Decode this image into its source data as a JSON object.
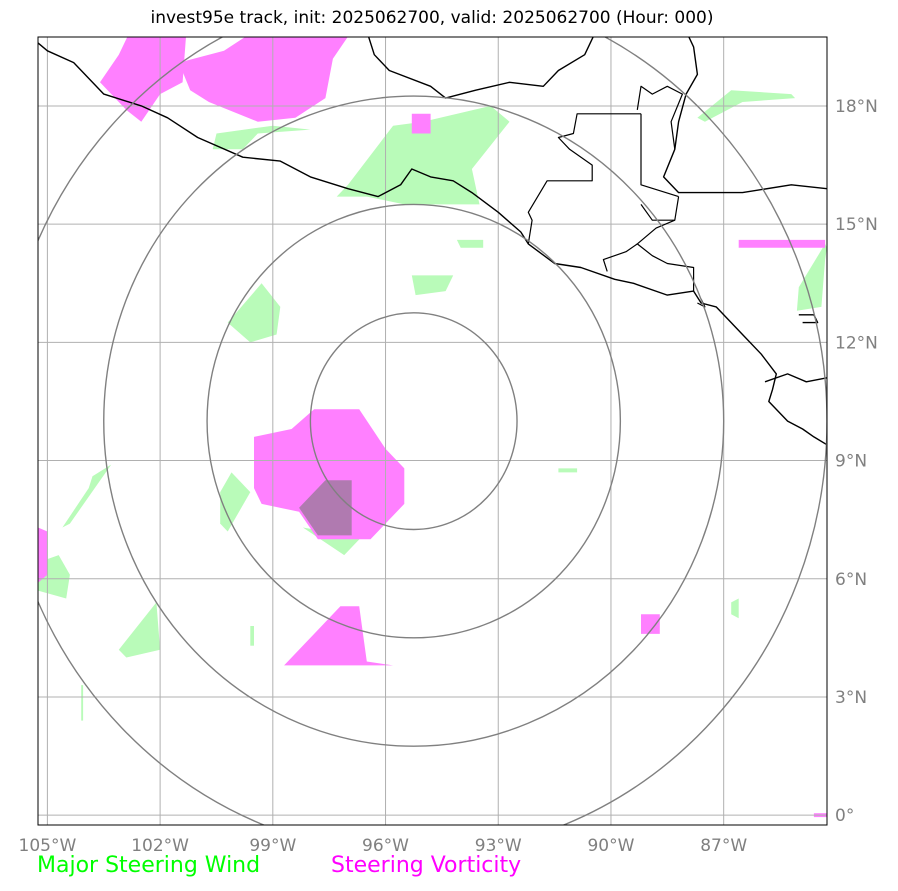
{
  "title": "invest95e track, init: 2025062700, valid: 2025062700 (Hour: 000)",
  "map": {
    "lon_range": [
      -105.25,
      -84.25
    ],
    "lat_range": [
      -0.25,
      19.75
    ],
    "lon_ticks": [
      {
        "value": -105,
        "label": "105°W"
      },
      {
        "value": -102,
        "label": "102°W"
      },
      {
        "value": -99,
        "label": "99°W"
      },
      {
        "value": -96,
        "label": "96°W"
      },
      {
        "value": -93,
        "label": "93°W"
      },
      {
        "value": -90,
        "label": "90°W"
      },
      {
        "value": -87,
        "label": "87°W"
      }
    ],
    "lat_ticks": [
      {
        "value": 18,
        "label": "18°N"
      },
      {
        "value": 15,
        "label": "15°N"
      },
      {
        "value": 12,
        "label": "12°N"
      },
      {
        "value": 9,
        "label": "9°N"
      },
      {
        "value": 6,
        "label": "6°N"
      },
      {
        "value": 3,
        "label": "3°N"
      },
      {
        "value": 0,
        "label": "0°"
      }
    ],
    "range_ring_center": {
      "lon": -95.25,
      "lat": 10.0
    },
    "range_ring_radii_deg": [
      2.75,
      5.5,
      8.25,
      11.0
    ],
    "gridlines": true
  },
  "legend": {
    "wind_label": "Major Steering Wind",
    "wind_color": "#00ff00",
    "vorticity_label": "Steering Vorticity",
    "vorticity_color": "#ff00ff"
  },
  "colors": {
    "wind_fill": "#b9fbb9",
    "vorticity_fill": "#ff80ff",
    "overlap_fill": "#b07ab0",
    "ring": "#808080",
    "grid": "#b0b0b0",
    "coast": "#000000"
  },
  "fields": {
    "wind": [
      [
        [
          -97,
          16
        ],
        [
          -95.8,
          17.5
        ],
        [
          -95,
          17.6
        ],
        [
          -93.2,
          18
        ],
        [
          -92.7,
          17.6
        ],
        [
          -93.7,
          16.4
        ],
        [
          -93.5,
          15.5
        ],
        [
          -95.5,
          15.5
        ],
        [
          -96.5,
          15.7
        ],
        [
          -97.3,
          15.7
        ]
      ],
      [
        [
          -100.6,
          16.9
        ],
        [
          -100.5,
          17.3
        ],
        [
          -99,
          17.5
        ],
        [
          -98,
          17.4
        ],
        [
          -99.4,
          17.3
        ],
        [
          -99.8,
          16.9
        ]
      ],
      [
        [
          -87.7,
          17.7
        ],
        [
          -86.8,
          18.4
        ],
        [
          -85.2,
          18.3
        ],
        [
          -85.1,
          18.2
        ],
        [
          -86.5,
          18.1
        ],
        [
          -87.5,
          17.6
        ]
      ],
      [
        [
          -84.3,
          14.1
        ],
        [
          -84.25,
          14.4
        ],
        [
          -84.3,
          14.5
        ],
        [
          -85,
          13.4
        ],
        [
          -85.05,
          12.8
        ],
        [
          -84.4,
          12.9
        ]
      ],
      [
        [
          -100.2,
          12.5
        ],
        [
          -99.3,
          13.5
        ],
        [
          -98.8,
          12.9
        ],
        [
          -98.9,
          12.2
        ],
        [
          -99.6,
          12.0
        ]
      ],
      [
        [
          -95.3,
          13.7
        ],
        [
          -94.2,
          13.7
        ],
        [
          -94.4,
          13.3
        ],
        [
          -95.2,
          13.2
        ]
      ],
      [
        [
          -94.1,
          14.6
        ],
        [
          -93.4,
          14.6
        ],
        [
          -93.4,
          14.4
        ],
        [
          -94.0,
          14.4
        ]
      ],
      [
        [
          -98.2,
          7.3
        ],
        [
          -97.6,
          7.2
        ],
        [
          -96.9,
          8.3
        ],
        [
          -96.4,
          8.8
        ],
        [
          -95.8,
          7.8
        ],
        [
          -96.5,
          7.2
        ],
        [
          -97.1,
          6.6
        ]
      ],
      [
        [
          -104.6,
          7.3
        ],
        [
          -103.9,
          8.3
        ],
        [
          -103.8,
          8.6
        ],
        [
          -103.3,
          8.9
        ],
        [
          -104.4,
          7.4
        ]
      ],
      [
        [
          -105.3,
          6.4
        ],
        [
          -105.25,
          5.7
        ],
        [
          -104.5,
          5.5
        ],
        [
          -104.4,
          6.1
        ],
        [
          -104.7,
          6.6
        ]
      ],
      [
        [
          -100.4,
          8.2
        ],
        [
          -100.1,
          8.7
        ],
        [
          -99.6,
          8.2
        ],
        [
          -100.2,
          7.2
        ],
        [
          -100.4,
          7.4
        ]
      ],
      [
        [
          -103.1,
          4.2
        ],
        [
          -102.1,
          5.4
        ],
        [
          -102,
          4.2
        ],
        [
          -102.9,
          4.0
        ]
      ],
      [
        [
          -91.4,
          8.8
        ],
        [
          -90.9,
          8.8
        ],
        [
          -90.9,
          8.7
        ],
        [
          -91.4,
          8.7
        ]
      ],
      [
        [
          -86.8,
          5.4
        ],
        [
          -86.6,
          5.5
        ],
        [
          -86.6,
          5.0
        ],
        [
          -86.8,
          5.1
        ]
      ],
      [
        [
          -99.6,
          4.8
        ],
        [
          -99.5,
          4.8
        ],
        [
          -99.5,
          4.3
        ],
        [
          -99.6,
          4.3
        ]
      ],
      [
        [
          -97.3,
          4.9
        ],
        [
          -97.2,
          4.9
        ],
        [
          -97.2,
          4.5
        ],
        [
          -97.3,
          4.5
        ]
      ],
      [
        [
          -104.1,
          3.3
        ],
        [
          -104.05,
          3.3
        ],
        [
          -104.05,
          2.4
        ],
        [
          -104.1,
          2.4
        ]
      ]
    ],
    "vorticity": [
      [
        [
          -103.1,
          19.3
        ],
        [
          -102.8,
          19.9
        ],
        [
          -101.3,
          19.9
        ],
        [
          -101.4,
          18.6
        ],
        [
          -102,
          18.3
        ],
        [
          -102.5,
          17.6
        ],
        [
          -102.9,
          17.9
        ],
        [
          -103.6,
          18.6
        ]
      ],
      [
        [
          -101.5,
          19.1
        ],
        [
          -100.3,
          19.4
        ],
        [
          -99.5,
          19.9
        ],
        [
          -96.9,
          19.9
        ],
        [
          -97.4,
          19.2
        ],
        [
          -97.6,
          18.2
        ],
        [
          -98.4,
          17.7
        ],
        [
          -99.4,
          17.6
        ],
        [
          -100.7,
          18.1
        ],
        [
          -101.2,
          18.4
        ]
      ],
      [
        [
          -95.3,
          17.8
        ],
        [
          -94.8,
          17.8
        ],
        [
          -94.8,
          17.3
        ],
        [
          -95.3,
          17.3
        ]
      ],
      [
        [
          -86.6,
          14.6
        ],
        [
          -84.3,
          14.6
        ],
        [
          -84.3,
          14.4
        ],
        [
          -86.6,
          14.4
        ]
      ],
      [
        [
          -99.5,
          8.3
        ],
        [
          -99.5,
          9.6
        ],
        [
          -98.5,
          9.8
        ],
        [
          -97.9,
          10.3
        ],
        [
          -96.7,
          10.3
        ],
        [
          -96,
          9.3
        ],
        [
          -95.5,
          8.8
        ],
        [
          -95.5,
          7.9
        ],
        [
          -96.4,
          7.0
        ],
        [
          -97.8,
          7.0
        ],
        [
          -98.3,
          7.7
        ],
        [
          -99.3,
          7.9
        ]
      ],
      [
        [
          -98.1,
          4.4
        ],
        [
          -97.2,
          5.3
        ],
        [
          -96.7,
          5.3
        ],
        [
          -96.5,
          3.9
        ],
        [
          -95.8,
          3.8
        ],
        [
          -98.7,
          3.8
        ]
      ],
      [
        [
          -89.2,
          5.1
        ],
        [
          -88.7,
          5.1
        ],
        [
          -88.7,
          4.6
        ],
        [
          -89.2,
          4.6
        ]
      ],
      [
        [
          -105.25,
          7.3
        ],
        [
          -105,
          7.2
        ],
        [
          -105,
          6.1
        ],
        [
          -105.25,
          5.9
        ]
      ],
      [
        [
          -84.6,
          0.05
        ],
        [
          -84.25,
          0.05
        ],
        [
          -84.25,
          -0.05
        ],
        [
          -84.6,
          -0.05
        ]
      ]
    ],
    "overlap": [
      [
        [
          -98.3,
          7.8
        ],
        [
          -97.8,
          7.1
        ],
        [
          -96.9,
          7.1
        ],
        [
          -96.9,
          8.5
        ],
        [
          -97.6,
          8.5
        ]
      ]
    ]
  },
  "coastlines": [
    [
      [
        -105.25,
        19.6
      ],
      [
        -105,
        19.4
      ],
      [
        -104.3,
        19.1
      ],
      [
        -103.5,
        18.3
      ],
      [
        -102.5,
        18.0
      ],
      [
        -101.8,
        17.7
      ],
      [
        -101,
        17.2
      ],
      [
        -99.8,
        16.7
      ],
      [
        -98.8,
        16.6
      ],
      [
        -98,
        16.2
      ],
      [
        -97,
        15.9
      ],
      [
        -96.2,
        15.7
      ],
      [
        -95.6,
        16.0
      ],
      [
        -95.3,
        16.4
      ],
      [
        -94.8,
        16.2
      ],
      [
        -94.2,
        16.1
      ],
      [
        -93.7,
        15.8
      ],
      [
        -93,
        15.3
      ],
      [
        -92.4,
        14.8
      ],
      [
        -92.2,
        14.5
      ],
      [
        -91.5,
        14.0
      ],
      [
        -90.8,
        13.9
      ],
      [
        -89.9,
        13.6
      ],
      [
        -89.4,
        13.5
      ],
      [
        -88.5,
        13.2
      ],
      [
        -87.8,
        13.3
      ],
      [
        -87.6,
        13.0
      ],
      [
        -87.2,
        12.9
      ],
      [
        -86.5,
        12.2
      ],
      [
        -86,
        11.7
      ],
      [
        -85.6,
        11.2
      ],
      [
        -85.7,
        10.8
      ],
      [
        -85.8,
        10.5
      ],
      [
        -85.3,
        10.0
      ],
      [
        -84.9,
        9.8
      ],
      [
        -84.6,
        9.6
      ],
      [
        -84.25,
        9.4
      ]
    ],
    [
      [
        -96.5,
        19.9
      ],
      [
        -96.3,
        19.3
      ],
      [
        -95.9,
        18.9
      ],
      [
        -94.8,
        18.5
      ],
      [
        -94.4,
        18.2
      ],
      [
        -93.6,
        18.4
      ],
      [
        -92.7,
        18.6
      ],
      [
        -91.8,
        18.5
      ],
      [
        -91.4,
        18.9
      ],
      [
        -90.7,
        19.3
      ],
      [
        -90.4,
        19.9
      ]
    ],
    [
      [
        -88.0,
        19.9
      ],
      [
        -87.8,
        19.5
      ],
      [
        -87.7,
        18.8
      ],
      [
        -88.0,
        18.3
      ],
      [
        -88.2,
        17.6
      ],
      [
        -88.3,
        16.9
      ],
      [
        -88.6,
        16.2
      ],
      [
        -88.2,
        15.8
      ],
      [
        -87.6,
        15.8
      ],
      [
        -86.5,
        15.8
      ],
      [
        -85.2,
        16.0
      ],
      [
        -84.25,
        15.9
      ]
    ],
    [
      [
        -84.25,
        11.1
      ],
      [
        -84.8,
        11.0
      ],
      [
        -85.3,
        11.2
      ],
      [
        -85.9,
        11.0
      ]
    ],
    [
      [
        -84.9,
        12.5
      ],
      [
        -84.5,
        12.5
      ],
      [
        -84.6,
        12.7
      ],
      [
        -85.0,
        12.7
      ]
    ]
  ],
  "borders": [
    [
      [
        -92.2,
        14.5
      ],
      [
        -92.1,
        15.1
      ],
      [
        -92.2,
        15.3
      ],
      [
        -91.7,
        16.1
      ],
      [
        -90.5,
        16.1
      ],
      [
        -90.5,
        16.5
      ],
      [
        -91.1,
        16.9
      ],
      [
        -91.4,
        17.2
      ],
      [
        -91.0,
        17.3
      ],
      [
        -90.9,
        17.8
      ],
      [
        -89.2,
        17.8
      ]
    ],
    [
      [
        -89.2,
        17.8
      ],
      [
        -89.2,
        16.0
      ],
      [
        -88.2,
        15.7
      ]
    ],
    [
      [
        -89.3,
        17.9
      ],
      [
        -89.2,
        18.5
      ],
      [
        -88.9,
        18.3
      ],
      [
        -88.5,
        18.5
      ],
      [
        -88.1,
        18.3
      ],
      [
        -88.4,
        17.6
      ],
      [
        -88.3,
        16.9
      ]
    ],
    [
      [
        -90.1,
        13.8
      ],
      [
        -90.2,
        14.1
      ],
      [
        -89.6,
        14.3
      ],
      [
        -89.3,
        14.5
      ],
      [
        -88.8,
        14.9
      ],
      [
        -88.3,
        15.1
      ],
      [
        -88.2,
        15.7
      ]
    ],
    [
      [
        -89.3,
        14.5
      ],
      [
        -88.9,
        14.2
      ],
      [
        -88.5,
        14.0
      ],
      [
        -87.8,
        13.9
      ],
      [
        -87.8,
        13.3
      ]
    ],
    [
      [
        -89.2,
        15.5
      ],
      [
        -88.9,
        15.1
      ],
      [
        -88.3,
        15.1
      ]
    ],
    [
      [
        -87.7,
        13.0
      ],
      [
        -87.5,
        12.9
      ],
      [
        -87.6,
        13.1
      ]
    ]
  ]
}
